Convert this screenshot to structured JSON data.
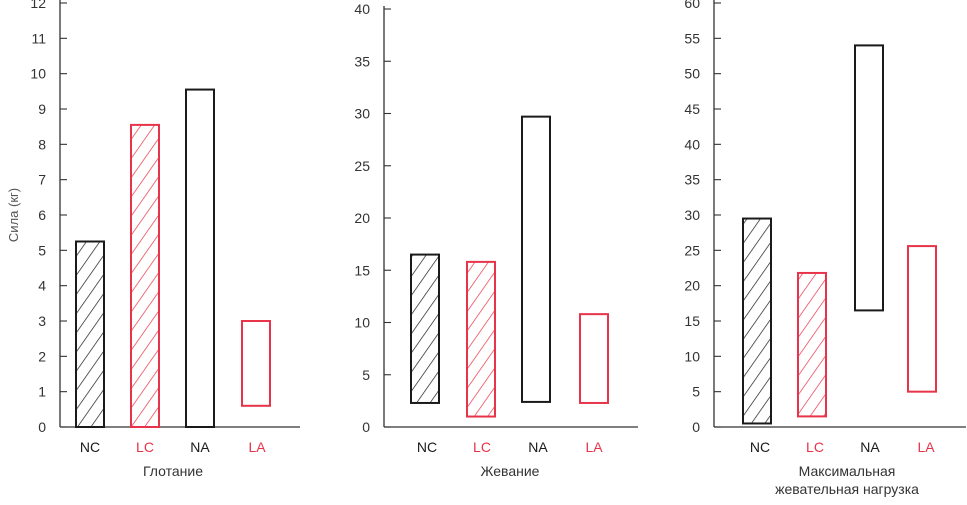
{
  "colors": {
    "black": "#1a1a1a",
    "red": "#e8344a",
    "axis": "#333333"
  },
  "chart_data": [
    {
      "type": "bar",
      "subtype": "floating-range",
      "xlabel": "Глотание",
      "ylabel": "Сила (кг)",
      "ylim": [
        0,
        12
      ],
      "yticks": [
        0,
        1,
        2,
        3,
        4,
        5,
        6,
        7,
        8,
        9,
        10,
        11,
        12
      ],
      "categories": [
        "NC",
        "LC",
        "NA",
        "LA"
      ],
      "ranges": [
        [
          0,
          5.25
        ],
        [
          0,
          8.55
        ],
        [
          0,
          9.55
        ],
        [
          0.6,
          3.0
        ]
      ],
      "hatched": [
        true,
        true,
        false,
        false
      ],
      "category_colors": [
        "black",
        "red",
        "black",
        "red"
      ],
      "grid": false
    },
    {
      "type": "bar",
      "subtype": "floating-range",
      "xlabel": "Жевание",
      "ylim": [
        0,
        40
      ],
      "yticks": [
        0,
        5,
        10,
        15,
        20,
        25,
        30,
        35,
        40
      ],
      "categories": [
        "NC",
        "LC",
        "NA",
        "LA"
      ],
      "ranges": [
        [
          2.3,
          16.5
        ],
        [
          1.0,
          15.8
        ],
        [
          2.4,
          29.7
        ],
        [
          2.3,
          10.8
        ]
      ],
      "hatched": [
        true,
        true,
        false,
        false
      ],
      "category_colors": [
        "black",
        "red",
        "black",
        "red"
      ],
      "grid": false
    },
    {
      "type": "bar",
      "subtype": "floating-range",
      "xlabel": [
        "Максимальная",
        "жевательная нагрузка"
      ],
      "ylim": [
        0,
        60
      ],
      "yticks": [
        0,
        5,
        10,
        15,
        20,
        25,
        30,
        35,
        40,
        45,
        50,
        55,
        60
      ],
      "categories": [
        "NC",
        "LC",
        "NA",
        "LA"
      ],
      "ranges": [
        [
          0.5,
          29.5
        ],
        [
          1.5,
          21.8
        ],
        [
          16.5,
          54.0
        ],
        [
          5.0,
          25.6
        ]
      ],
      "hatched": [
        true,
        true,
        false,
        false
      ],
      "category_colors": [
        "black",
        "red",
        "black",
        "red"
      ],
      "grid": false
    }
  ]
}
